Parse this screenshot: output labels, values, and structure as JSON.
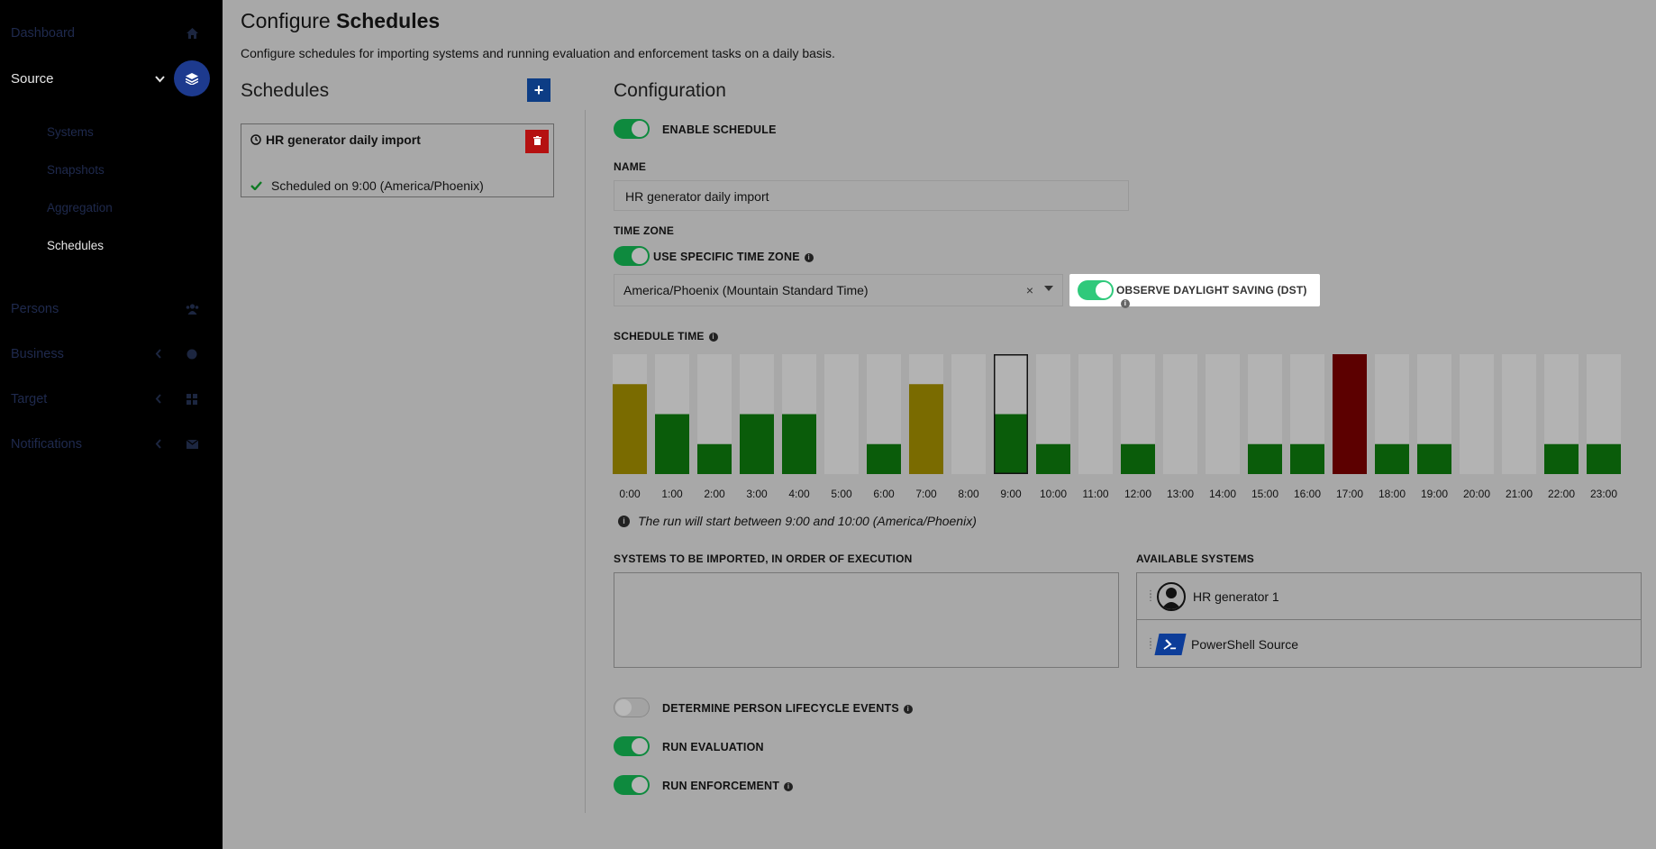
{
  "sidebar": {
    "items": [
      {
        "label": "Dashboard",
        "icon": "home-icon"
      },
      {
        "label": "Source",
        "icon": "layers-icon"
      },
      {
        "label": "Persons",
        "icon": "users-icon"
      },
      {
        "label": "Business",
        "icon": "sitemap-icon"
      },
      {
        "label": "Target",
        "icon": "grid-icon"
      },
      {
        "label": "Notifications",
        "icon": "envelope-icon"
      }
    ],
    "sub_items": [
      "Systems",
      "Snapshots",
      "Aggregation",
      "Schedules"
    ]
  },
  "header": {
    "title_prefix": "Configure",
    "title_bold": "Schedules",
    "description": "Configure schedules for importing systems and running evaluation and enforcement tasks on a daily basis."
  },
  "schedules_panel": {
    "heading": "Schedules",
    "add_label": "+",
    "card": {
      "title": "HR generator daily import",
      "status": "Scheduled on 9:00 (America/Phoenix)"
    }
  },
  "config": {
    "heading": "Configuration",
    "enable_label": "ENABLE SCHEDULE",
    "name_label": "NAME",
    "name_value": "HR generator daily import",
    "timezone_label": "TIME ZONE",
    "use_specific_tz_label": "USE SPECIFIC TIME ZONE",
    "timezone_value": "America/Phoenix (Mountain Standard Time)",
    "clear_symbol": "×",
    "dst_label": "OBSERVE DAYLIGHT SAVING (DST)",
    "schedule_time_label": "SCHEDULE TIME",
    "run_note": "The run will start between 9:00 and 10:00 (America/Phoenix)",
    "systems_to_import_label": "SYSTEMS TO BE IMPORTED, IN ORDER OF EXECUTION",
    "available_systems_label": "AVAILABLE SYSTEMS",
    "available_systems": [
      "HR generator 1",
      "PowerShell Source"
    ],
    "lifecycle_label": "DETERMINE PERSON LIFECYCLE EVENTS",
    "run_evaluation_label": "RUN EVALUATION",
    "run_enforcement_label": "RUN ENFORCEMENT"
  },
  "toggles": {
    "enable_schedule": true,
    "use_specific_tz": true,
    "observe_dst": true,
    "lifecycle": false,
    "run_evaluation": true,
    "run_enforcement": true
  },
  "chart_data": {
    "type": "bar",
    "categories": [
      "0:00",
      "1:00",
      "2:00",
      "3:00",
      "4:00",
      "5:00",
      "6:00",
      "7:00",
      "8:00",
      "9:00",
      "10:00",
      "11:00",
      "12:00",
      "13:00",
      "14:00",
      "15:00",
      "16:00",
      "17:00",
      "18:00",
      "19:00",
      "20:00",
      "21:00",
      "22:00",
      "23:00"
    ],
    "values": [
      0.75,
      0.5,
      0.25,
      0.5,
      0.5,
      0,
      0.25,
      0.75,
      0,
      0.5,
      0.25,
      0,
      0.25,
      0,
      0,
      0.25,
      0.25,
      1.0,
      0.25,
      0.25,
      0,
      0,
      0.25,
      0.25
    ],
    "colors": [
      "#7a6b00",
      "#0a5c0a",
      "#0a5c0a",
      "#0a5c0a",
      "#0a5c0a",
      "#0a5c0a",
      "#0a5c0a",
      "#7a6b00",
      "#0a5c0a",
      "#0a5c0a",
      "#0a5c0a",
      "#0a5c0a",
      "#0a5c0a",
      "#0a5c0a",
      "#0a5c0a",
      "#0a5c0a",
      "#0a5c0a",
      "#5c0000",
      "#0a5c0a",
      "#0a5c0a",
      "#0a5c0a",
      "#0a5c0a",
      "#0a5c0a",
      "#0a5c0a"
    ],
    "selected": "9:00",
    "ylim": [
      0,
      1
    ]
  }
}
